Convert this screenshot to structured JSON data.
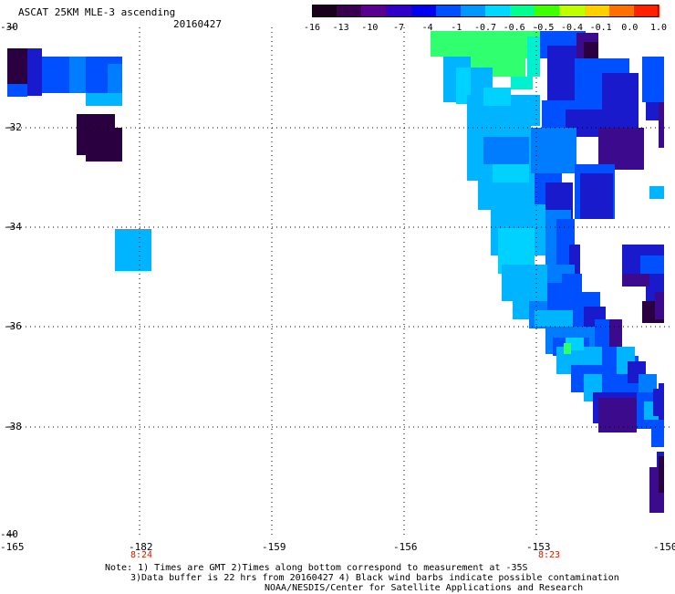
{
  "header": {
    "title": "ASCAT 25KM MLE-3 ascending",
    "date": "20160427"
  },
  "colorbar": {
    "labels": [
      "-16",
      "-13",
      "-10",
      "-7",
      "-4",
      "-1",
      "-0.7",
      "-0.6",
      "-0.5",
      "-0.4",
      "-0.1",
      "0.0",
      "1.0"
    ],
    "colors": [
      "#1a001a",
      "#3a0050",
      "#5a0090",
      "#3000c8",
      "#0000f0",
      "#0050ff",
      "#0098ff",
      "#00d8ff",
      "#00ff90",
      "#40ff00",
      "#c0ff00",
      "#ffd000",
      "#ff7000",
      "#ff2000"
    ]
  },
  "axes": {
    "lat_labels": [
      "-30",
      "-32",
      "-34",
      "-36",
      "-38",
      "-40"
    ],
    "lon_labels": [
      "-165",
      "-182",
      "-159",
      "-156",
      "-153",
      "-150"
    ],
    "time_labels": [
      "8:24",
      "8:23"
    ]
  },
  "notes": {
    "line1": "Note: 1) Times are GMT 2)Times along bottom correspond to measurement at -35S",
    "line2": "3)Data buffer is 22 hrs from 20160427 4) Black wind barbs indicate possible contamination",
    "line3": "NOAA/NESDIS/Center for Satellite Applications and Research"
  },
  "palette": {
    "dark": "#2a0040",
    "purple": "#3c0a8c",
    "navy": "#1a1acd",
    "blue": "#0050ff",
    "mid": "#007dff",
    "light": "#00b4ff",
    "cyan": "#00d2ff",
    "aqua": "#00f0d0",
    "green": "#30ff70"
  }
}
